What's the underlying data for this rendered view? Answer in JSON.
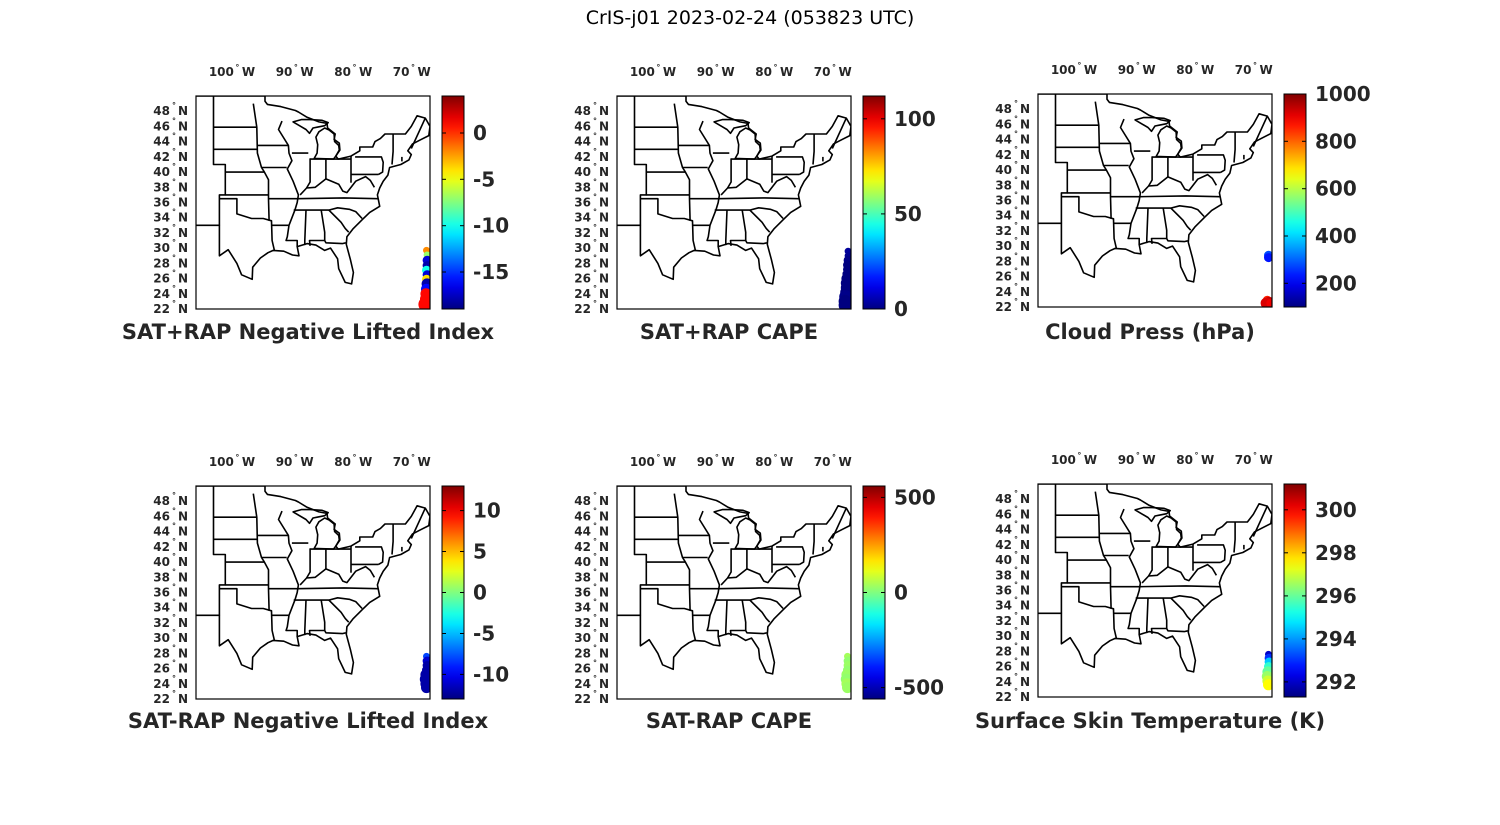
{
  "figure_title": "CrIS-j01 2023-02-24 (053823 UTC)",
  "axes": {
    "lon_ticks": [
      {
        "value": -100,
        "label": "100",
        "hemi": "W"
      },
      {
        "value": -90,
        "label": "90",
        "hemi": "W"
      },
      {
        "value": -80,
        "label": "80",
        "hemi": "W"
      },
      {
        "value": -70,
        "label": "70",
        "hemi": "W"
      }
    ],
    "lat_ticks": [
      {
        "value": 48,
        "label": "48",
        "hemi": "N"
      },
      {
        "value": 46,
        "label": "46",
        "hemi": "N"
      },
      {
        "value": 44,
        "label": "44",
        "hemi": "N"
      },
      {
        "value": 42,
        "label": "42",
        "hemi": "N"
      },
      {
        "value": 40,
        "label": "40",
        "hemi": "N"
      },
      {
        "value": 38,
        "label": "38",
        "hemi": "N"
      },
      {
        "value": 36,
        "label": "36",
        "hemi": "N"
      },
      {
        "value": 34,
        "label": "34",
        "hemi": "N"
      },
      {
        "value": 32,
        "label": "32",
        "hemi": "N"
      },
      {
        "value": 30,
        "label": "30",
        "hemi": "N"
      },
      {
        "value": 28,
        "label": "28",
        "hemi": "N"
      },
      {
        "value": 26,
        "label": "26",
        "hemi": "N"
      },
      {
        "value": 24,
        "label": "24",
        "hemi": "N"
      },
      {
        "value": 22,
        "label": "22",
        "hemi": "N"
      }
    ],
    "lon_range": [
      -107,
      -67
    ],
    "lat_range": [
      22,
      50
    ],
    "degree_symbol": "°",
    "colormap": "jet"
  },
  "panels": [
    {
      "caption": "SAT+RAP Negative Lifted Index",
      "colorbar": {
        "min": -19,
        "max": 4,
        "ticks": [
          {
            "value": 0,
            "label": "0"
          },
          {
            "value": -5,
            "label": "-5"
          },
          {
            "value": -10,
            "label": "-10"
          },
          {
            "value": -15,
            "label": "-15"
          }
        ]
      },
      "points": [
        {
          "lon": -67.6,
          "lat": 29.7,
          "v": -2,
          "r": 3
        },
        {
          "lon": -67.5,
          "lat": 29.1,
          "v": -7,
          "r": 3
        },
        {
          "lon": -67.5,
          "lat": 28.4,
          "v": -17,
          "r": 4
        },
        {
          "lon": -67.5,
          "lat": 27.7,
          "v": -18,
          "r": 4
        },
        {
          "lon": -67.6,
          "lat": 27.1,
          "v": -10,
          "r": 4
        },
        {
          "lon": -67.5,
          "lat": 26.5,
          "v": -17,
          "r": 4
        },
        {
          "lon": -67.6,
          "lat": 25.9,
          "v": -4,
          "r": 4
        },
        {
          "lon": -67.5,
          "lat": 25.3,
          "v": -18,
          "r": 5
        },
        {
          "lon": -67.6,
          "lat": 24.6,
          "v": -16,
          "r": 5
        },
        {
          "lon": -67.7,
          "lat": 24.0,
          "v": 1,
          "r": 5
        },
        {
          "lon": -67.6,
          "lat": 23.3,
          "v": 1,
          "r": 6
        },
        {
          "lon": -67.7,
          "lat": 22.6,
          "v": 1,
          "r": 7
        }
      ]
    },
    {
      "caption": "SAT+RAP CAPE",
      "colorbar": {
        "min": 0,
        "max": 112,
        "ticks": [
          {
            "value": 100,
            "label": "100"
          },
          {
            "value": 50,
            "label": "50"
          },
          {
            "value": 0,
            "label": "0"
          }
        ]
      },
      "points": [
        {
          "lon": -67.5,
          "lat": 29.6,
          "v": 3,
          "r": 3
        },
        {
          "lon": -67.5,
          "lat": 29.0,
          "v": 2,
          "r": 3
        },
        {
          "lon": -67.5,
          "lat": 28.4,
          "v": 1,
          "r": 4
        },
        {
          "lon": -67.6,
          "lat": 27.8,
          "v": 0,
          "r": 4
        },
        {
          "lon": -67.6,
          "lat": 27.2,
          "v": 0,
          "r": 4
        },
        {
          "lon": -67.7,
          "lat": 26.6,
          "v": 0,
          "r": 4
        },
        {
          "lon": -67.7,
          "lat": 26.0,
          "v": 0,
          "r": 5
        },
        {
          "lon": -67.8,
          "lat": 25.4,
          "v": 0,
          "r": 5
        },
        {
          "lon": -67.8,
          "lat": 24.8,
          "v": 0,
          "r": 5
        },
        {
          "lon": -67.9,
          "lat": 24.2,
          "v": 0,
          "r": 5
        },
        {
          "lon": -67.9,
          "lat": 23.6,
          "v": 1,
          "r": 6
        },
        {
          "lon": -68.0,
          "lat": 23.0,
          "v": 0,
          "r": 6
        },
        {
          "lon": -68.0,
          "lat": 22.5,
          "v": 0,
          "r": 6
        }
      ]
    },
    {
      "caption": "Cloud Press (hPa)",
      "colorbar": {
        "min": 100,
        "max": 1000,
        "ticks": [
          {
            "value": 1000,
            "label": "1000"
          },
          {
            "value": 800,
            "label": "800"
          },
          {
            "value": 600,
            "label": "600"
          },
          {
            "value": 400,
            "label": "400"
          },
          {
            "value": 200,
            "label": "200"
          }
        ]
      },
      "points": [
        {
          "lon": -67.6,
          "lat": 28.8,
          "v": 280,
          "r": 4
        },
        {
          "lon": -67.6,
          "lat": 28.5,
          "v": 230,
          "r": 4
        },
        {
          "lon": -67.8,
          "lat": 22.9,
          "v": 860,
          "r": 4
        },
        {
          "lon": -67.5,
          "lat": 22.6,
          "v": 940,
          "r": 5
        },
        {
          "lon": -68.0,
          "lat": 22.5,
          "v": 920,
          "r": 5
        },
        {
          "lon": -67.2,
          "lat": 22.5,
          "v": 900,
          "r": 4
        }
      ]
    },
    {
      "caption": "SAT-RAP Negative Lifted Index",
      "colorbar": {
        "min": -13,
        "max": 13,
        "ticks": [
          {
            "value": 10,
            "label": "10"
          },
          {
            "value": 5,
            "label": "5"
          },
          {
            "value": 0,
            "label": "0"
          },
          {
            "value": -5,
            "label": "-5"
          },
          {
            "value": -10,
            "label": "-10"
          }
        ]
      },
      "points": [
        {
          "lon": -67.6,
          "lat": 27.6,
          "v": -8,
          "r": 3
        },
        {
          "lon": -67.5,
          "lat": 27.0,
          "v": -11,
          "r": 4
        },
        {
          "lon": -67.5,
          "lat": 26.4,
          "v": -12,
          "r": 4
        },
        {
          "lon": -67.6,
          "lat": 25.8,
          "v": -12,
          "r": 4
        },
        {
          "lon": -67.7,
          "lat": 25.2,
          "v": -12,
          "r": 5
        },
        {
          "lon": -67.8,
          "lat": 24.6,
          "v": -12,
          "r": 5
        },
        {
          "lon": -67.7,
          "lat": 24.0,
          "v": -12,
          "r": 5
        },
        {
          "lon": -67.6,
          "lat": 23.5,
          "v": -12,
          "r": 5
        }
      ]
    },
    {
      "caption": "SAT-RAP CAPE",
      "colorbar": {
        "min": -560,
        "max": 560,
        "ticks": [
          {
            "value": 500,
            "label": "500"
          },
          {
            "value": 0,
            "label": "0"
          },
          {
            "value": -500,
            "label": "-500"
          }
        ]
      },
      "points": [
        {
          "lon": -67.6,
          "lat": 27.6,
          "v": 40,
          "r": 3
        },
        {
          "lon": -67.5,
          "lat": 27.0,
          "v": 20,
          "r": 4
        },
        {
          "lon": -67.5,
          "lat": 26.4,
          "v": 30,
          "r": 4
        },
        {
          "lon": -67.6,
          "lat": 25.8,
          "v": 20,
          "r": 4
        },
        {
          "lon": -67.7,
          "lat": 25.2,
          "v": 30,
          "r": 5
        },
        {
          "lon": -67.8,
          "lat": 24.6,
          "v": 20,
          "r": 5
        },
        {
          "lon": -67.7,
          "lat": 24.0,
          "v": 40,
          "r": 5
        },
        {
          "lon": -67.6,
          "lat": 23.5,
          "v": 30,
          "r": 5
        }
      ]
    },
    {
      "caption": "Surface Skin Temperature (K)",
      "colorbar": {
        "min": 291.3,
        "max": 301.2,
        "ticks": [
          {
            "value": 300,
            "label": "300"
          },
          {
            "value": 298,
            "label": "298"
          },
          {
            "value": 296,
            "label": "296"
          },
          {
            "value": 294,
            "label": "294"
          },
          {
            "value": 292,
            "label": "292"
          }
        ]
      },
      "points": [
        {
          "lon": -67.6,
          "lat": 27.6,
          "v": 292,
          "r": 3
        },
        {
          "lon": -67.5,
          "lat": 27.1,
          "v": 293,
          "r": 4
        },
        {
          "lon": -67.5,
          "lat": 26.6,
          "v": 294.5,
          "r": 4
        },
        {
          "lon": -67.6,
          "lat": 26.0,
          "v": 295.5,
          "r": 4
        },
        {
          "lon": -67.7,
          "lat": 25.3,
          "v": 296,
          "r": 5
        },
        {
          "lon": -67.8,
          "lat": 24.7,
          "v": 296.5,
          "r": 5
        },
        {
          "lon": -67.7,
          "lat": 24.1,
          "v": 297,
          "r": 5
        },
        {
          "lon": -67.6,
          "lat": 23.6,
          "v": 297.5,
          "r": 5
        }
      ]
    }
  ]
}
